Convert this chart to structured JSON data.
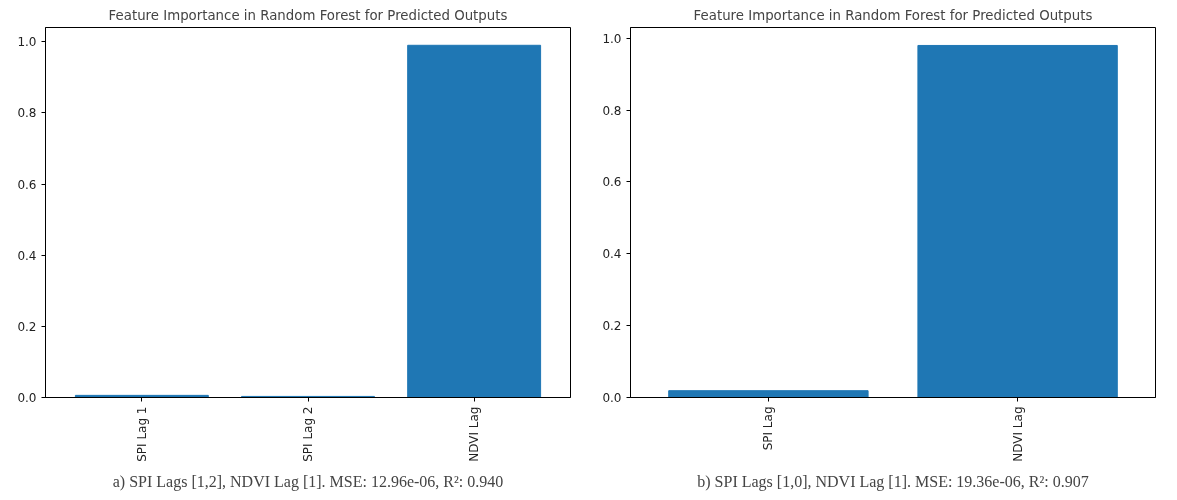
{
  "chart_data": [
    {
      "type": "bar",
      "title": "Feature Importance in Random Forest for Predicted Outputs",
      "categories": [
        "SPI Lag 1",
        "SPI Lag 2",
        "NDVI Lag"
      ],
      "values": [
        0.006,
        0.003,
        0.99
      ],
      "color": "#1f77b4",
      "ylim": [
        0,
        1.04
      ],
      "yticks": [
        {
          "value": 0,
          "label": "0.0"
        },
        {
          "value": 0.2,
          "label": "0.2"
        },
        {
          "value": 0.4,
          "label": "0.4"
        },
        {
          "value": 0.6,
          "label": "0.6"
        },
        {
          "value": 0.8,
          "label": "0.8"
        },
        {
          "value": 1.0,
          "label": "1.0"
        }
      ],
      "grid": false,
      "annotations": [
        "a) SPI Lags [1,2], NDVI Lag [1]. MSE: 12.96e-06, R²: 0.940"
      ]
    },
    {
      "type": "bar",
      "title": "Feature Importance in Random Forest for Predicted Outputs",
      "categories": [
        "SPI Lag",
        "NDVI Lag"
      ],
      "values": [
        0.019,
        0.98
      ],
      "color": "#1f77b4",
      "ylim": [
        0,
        1.03
      ],
      "yticks": [
        {
          "value": 0,
          "label": "0.0"
        },
        {
          "value": 0.2,
          "label": "0.2"
        },
        {
          "value": 0.4,
          "label": "0.4"
        },
        {
          "value": 0.6,
          "label": "0.6"
        },
        {
          "value": 0.8,
          "label": "0.8"
        },
        {
          "value": 1.0,
          "label": "1.0"
        }
      ],
      "grid": false,
      "annotations": [
        "b) SPI Lags [1,0], NDVI Lag [1]. MSE: 19.36e-06, R²: 0.907"
      ]
    }
  ]
}
